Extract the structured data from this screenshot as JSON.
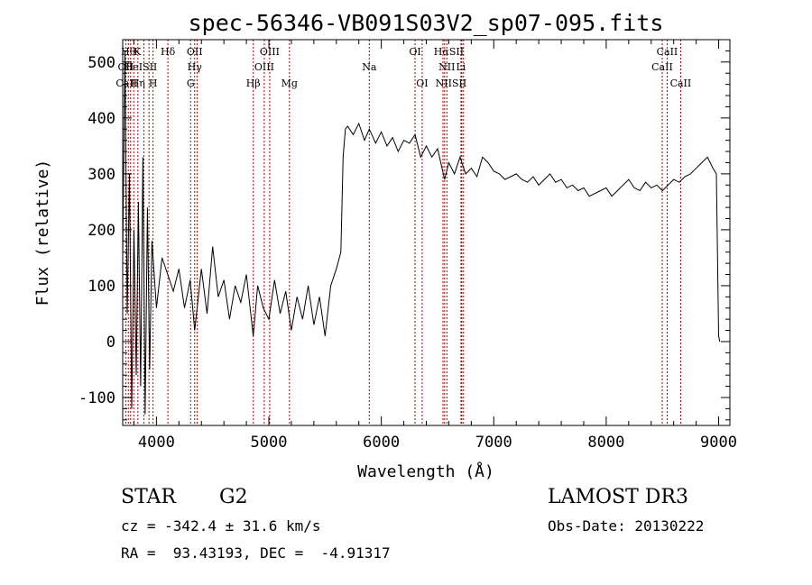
{
  "chart_data": {
    "type": "line",
    "title": "spec-56346-VB091S03V2_sp07-095.fits",
    "xlabel": "Wavelength (Å)",
    "ylabel": "Flux (relative)",
    "xlim": [
      3700,
      9100
    ],
    "ylim": [
      -150,
      540
    ],
    "x_ticks": [
      4000,
      5000,
      6000,
      7000,
      8000,
      9000
    ],
    "y_ticks": [
      -100,
      0,
      100,
      200,
      300,
      400,
      500
    ],
    "series": [
      {
        "color": "#000000",
        "x": [
          3700,
          3720,
          3740,
          3760,
          3780,
          3800,
          3820,
          3840,
          3860,
          3880,
          3900,
          3920,
          3940,
          3960,
          3980,
          4000,
          4050,
          4100,
          4150,
          4200,
          4250,
          4300,
          4340,
          4400,
          4450,
          4500,
          4550,
          4600,
          4650,
          4700,
          4750,
          4800,
          4861,
          4900,
          4950,
          5000,
          5050,
          5100,
          5150,
          5200,
          5250,
          5300,
          5350,
          5400,
          5450,
          5500,
          5550,
          5600,
          5640,
          5660,
          5680,
          5700,
          5750,
          5800,
          5850,
          5893,
          5950,
          6000,
          6050,
          6100,
          6150,
          6200,
          6250,
          6300,
          6350,
          6400,
          6450,
          6500,
          6563,
          6600,
          6650,
          6700,
          6750,
          6800,
          6850,
          6900,
          6950,
          7000,
          7050,
          7100,
          7150,
          7200,
          7250,
          7300,
          7350,
          7400,
          7450,
          7500,
          7550,
          7600,
          7650,
          7700,
          7750,
          7800,
          7850,
          7900,
          7950,
          8000,
          8050,
          8100,
          8150,
          8200,
          8250,
          8300,
          8350,
          8400,
          8450,
          8500,
          8550,
          8600,
          8650,
          8700,
          8750,
          8800,
          8850,
          8900,
          8950,
          8980,
          9000,
          9010
        ],
        "y": [
          150,
          520,
          50,
          300,
          -120,
          200,
          -60,
          250,
          -80,
          330,
          -130,
          240,
          -50,
          180,
          120,
          60,
          150,
          120,
          90,
          130,
          60,
          110,
          20,
          130,
          50,
          170,
          80,
          110,
          40,
          100,
          70,
          120,
          10,
          100,
          60,
          40,
          110,
          50,
          90,
          20,
          80,
          40,
          100,
          30,
          80,
          10,
          100,
          130,
          160,
          330,
          380,
          385,
          370,
          390,
          360,
          380,
          355,
          375,
          350,
          365,
          340,
          360,
          355,
          370,
          330,
          350,
          330,
          345,
          290,
          320,
          300,
          330,
          300,
          310,
          295,
          330,
          320,
          305,
          300,
          290,
          295,
          300,
          290,
          285,
          295,
          280,
          290,
          300,
          285,
          290,
          275,
          280,
          270,
          275,
          260,
          265,
          270,
          275,
          260,
          270,
          280,
          290,
          275,
          270,
          285,
          275,
          280,
          270,
          280,
          290,
          285,
          295,
          300,
          310,
          320,
          330,
          310,
          300,
          10,
          0
        ]
      }
    ],
    "spectral_lines": [
      {
        "label": "Hθ",
        "x": 3750,
        "row": 0
      },
      {
        "label": "K",
        "x": 3830,
        "row": 0
      },
      {
        "label": "Hδ",
        "x": 4102,
        "row": 0
      },
      {
        "label": "OII",
        "x": 4340,
        "row": 0
      },
      {
        "label": "OIII",
        "x": 5007,
        "row": 0
      },
      {
        "label": "OI",
        "x": 6300,
        "row": 0
      },
      {
        "label": "HαSII",
        "x": 6600,
        "row": 0
      },
      {
        "label": "CaII",
        "x": 8542,
        "row": 0
      },
      {
        "label": "OII",
        "x": 3727,
        "row": 1
      },
      {
        "label": "HeISII",
        "x": 3860,
        "row": 1
      },
      {
        "label": "Hγ",
        "x": 4340,
        "row": 1
      },
      {
        "label": "OIII",
        "x": 4959,
        "row": 1
      },
      {
        "label": "Na",
        "x": 5893,
        "row": 1
      },
      {
        "label": "NII",
        "x": 6583,
        "row": 1
      },
      {
        "label": "Li",
        "x": 6708,
        "row": 1
      },
      {
        "label": "CaII",
        "x": 8498,
        "row": 1
      },
      {
        "label": "CaII",
        "x": 3734,
        "row": 2
      },
      {
        "label": "Hη",
        "x": 3835,
        "row": 2
      },
      {
        "label": "H",
        "x": 3970,
        "row": 2
      },
      {
        "label": "G",
        "x": 4304,
        "row": 2
      },
      {
        "label": "Hβ",
        "x": 4861,
        "row": 2
      },
      {
        "label": "Mg",
        "x": 5183,
        "row": 2
      },
      {
        "label": "OI",
        "x": 6363,
        "row": 2
      },
      {
        "label": "NIISII",
        "x": 6620,
        "row": 2
      },
      {
        "label": "CaII",
        "x": 8662,
        "row": 2
      }
    ],
    "line_markers_x": [
      3727,
      3750,
      3770,
      3798,
      3835,
      3889,
      3934,
      3970,
      4102,
      4304,
      4340,
      4363,
      4861,
      4959,
      5007,
      5183,
      5893,
      6300,
      6363,
      6548,
      6563,
      6583,
      6708,
      6716,
      6731,
      8498,
      8542,
      8662
    ],
    "line_marker_color": "#b40000"
  },
  "info": {
    "class": "STAR",
    "subclass": "G2",
    "survey": "LAMOST DR3",
    "cz": "cz = -342.4 ± 31.6 km/s",
    "obs_date": "Obs-Date: 20130222",
    "coords": "RA =  93.43193, DEC =  -4.91317"
  }
}
